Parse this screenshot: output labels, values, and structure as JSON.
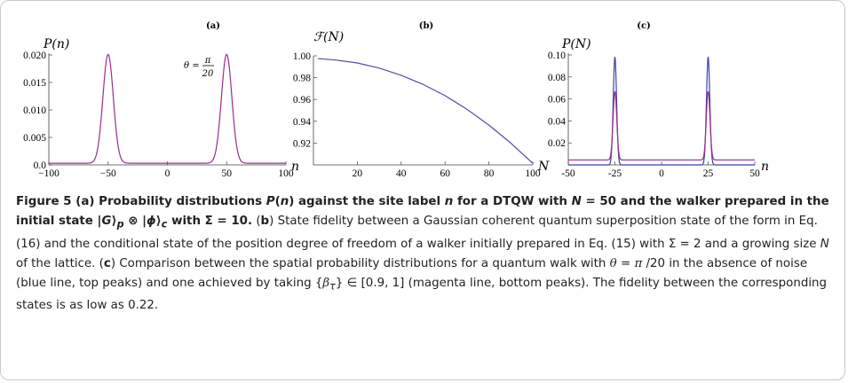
{
  "chart_data": [
    {
      "type": "line",
      "panel_label": "(a)",
      "ylabel": "P(n)",
      "xlabel": "n",
      "annotation": {
        "lhs": "θ =",
        "num": "π",
        "den": "20"
      },
      "xlim": [
        -100,
        100
      ],
      "ylim": [
        0,
        0.02
      ],
      "xticks": [
        "−100",
        "−50",
        "0",
        "50",
        "100"
      ],
      "yticks": [
        "0.0",
        "0.005",
        "0.010",
        "0.015",
        "0.020"
      ],
      "series": [
        {
          "color": "#9b2d8c",
          "peaks": [
            {
              "x": -50,
              "y": 0.0198,
              "width": 4.4
            },
            {
              "x": 50,
              "y": 0.0198,
              "width": 4.4
            }
          ],
          "baseline": 0.0003
        }
      ]
    },
    {
      "type": "line",
      "panel_label": "(b)",
      "ylabel": "ℱ(N)",
      "xlabel": "N",
      "xlim": [
        0,
        100
      ],
      "ylim": [
        0.9,
        1.0
      ],
      "xticks": [
        "20",
        "40",
        "60",
        "80",
        "100"
      ],
      "yticks": [
        "0.92",
        "0.94",
        "0.96",
        "0.98",
        "1.00"
      ],
      "series": [
        {
          "color": "#4b4fa6",
          "x": [
            2,
            10,
            20,
            30,
            40,
            50,
            60,
            70,
            80,
            90,
            100
          ],
          "y": [
            0.9975,
            0.9962,
            0.9935,
            0.9888,
            0.9822,
            0.9738,
            0.9635,
            0.951,
            0.9365,
            0.92,
            0.9015
          ]
        }
      ]
    },
    {
      "type": "line",
      "panel_label": "(c)",
      "ylabel": "P(N)",
      "xlabel": "n",
      "xlim": [
        -50,
        50
      ],
      "ylim": [
        0,
        0.1
      ],
      "xticks": [
        "-50",
        "-25",
        "0",
        "25",
        "50"
      ],
      "yticks": [
        "0.02",
        "0.04",
        "0.06",
        "0.08",
        "0.10"
      ],
      "series": [
        {
          "color": "#3b3fb0",
          "peaks": [
            {
              "x": -25,
              "y": 0.098,
              "width": 0.9
            },
            {
              "x": 25,
              "y": 0.098,
              "width": 0.9
            }
          ],
          "baseline": 0.0
        },
        {
          "color": "#9b2d8c",
          "peaks": [
            {
              "x": -25,
              "y": 0.062,
              "width": 1.0
            },
            {
              "x": 25,
              "y": 0.062,
              "width": 1.0
            }
          ],
          "baseline": 0.0045
        }
      ]
    }
  ],
  "caption": {
    "s1": "Figure 5",
    "s2": " (a) Probability distributions ",
    "s3": "P",
    "s4": "(",
    "s5": "n",
    "s6": ") against the site label ",
    "s7": "n",
    "s8": " for a DTQW with ",
    "s9": "N",
    "s10": " = 50 and the walker prepared in the initial state |",
    "s11": "G",
    "s12": "⟩",
    "s13": "p",
    "s14": " ⊗ |",
    "s15": "ϕ",
    "s16": "⟩",
    "s17": "c",
    "s18": " with Σ = 10.",
    "s19": " (",
    "s20": "b",
    "s21": ") State fidelity between a Gaussian coherent quantum superposition state of the form in Eq. (16) and the conditional state of the position degree of freedom of a walker initially prepared in Eq. (15) with Σ = 2 and a growing size ",
    "s22": "N",
    "s23": " of the lattice. (",
    "s24": "c",
    "s25": ") Comparison between the spatial probability distributions for a quantum walk with ",
    "s26": "θ",
    "s27": " = ",
    "s28": "π",
    "s29": " /20 in the absence of noise (blue line, top peaks) and one achieved by taking {",
    "s30": "β",
    "s31": "τ",
    "s32": "} ∈ [0.9, 1] (magenta line, bottom peaks). The fidelity between the corresponding states is as low as 0.22."
  }
}
